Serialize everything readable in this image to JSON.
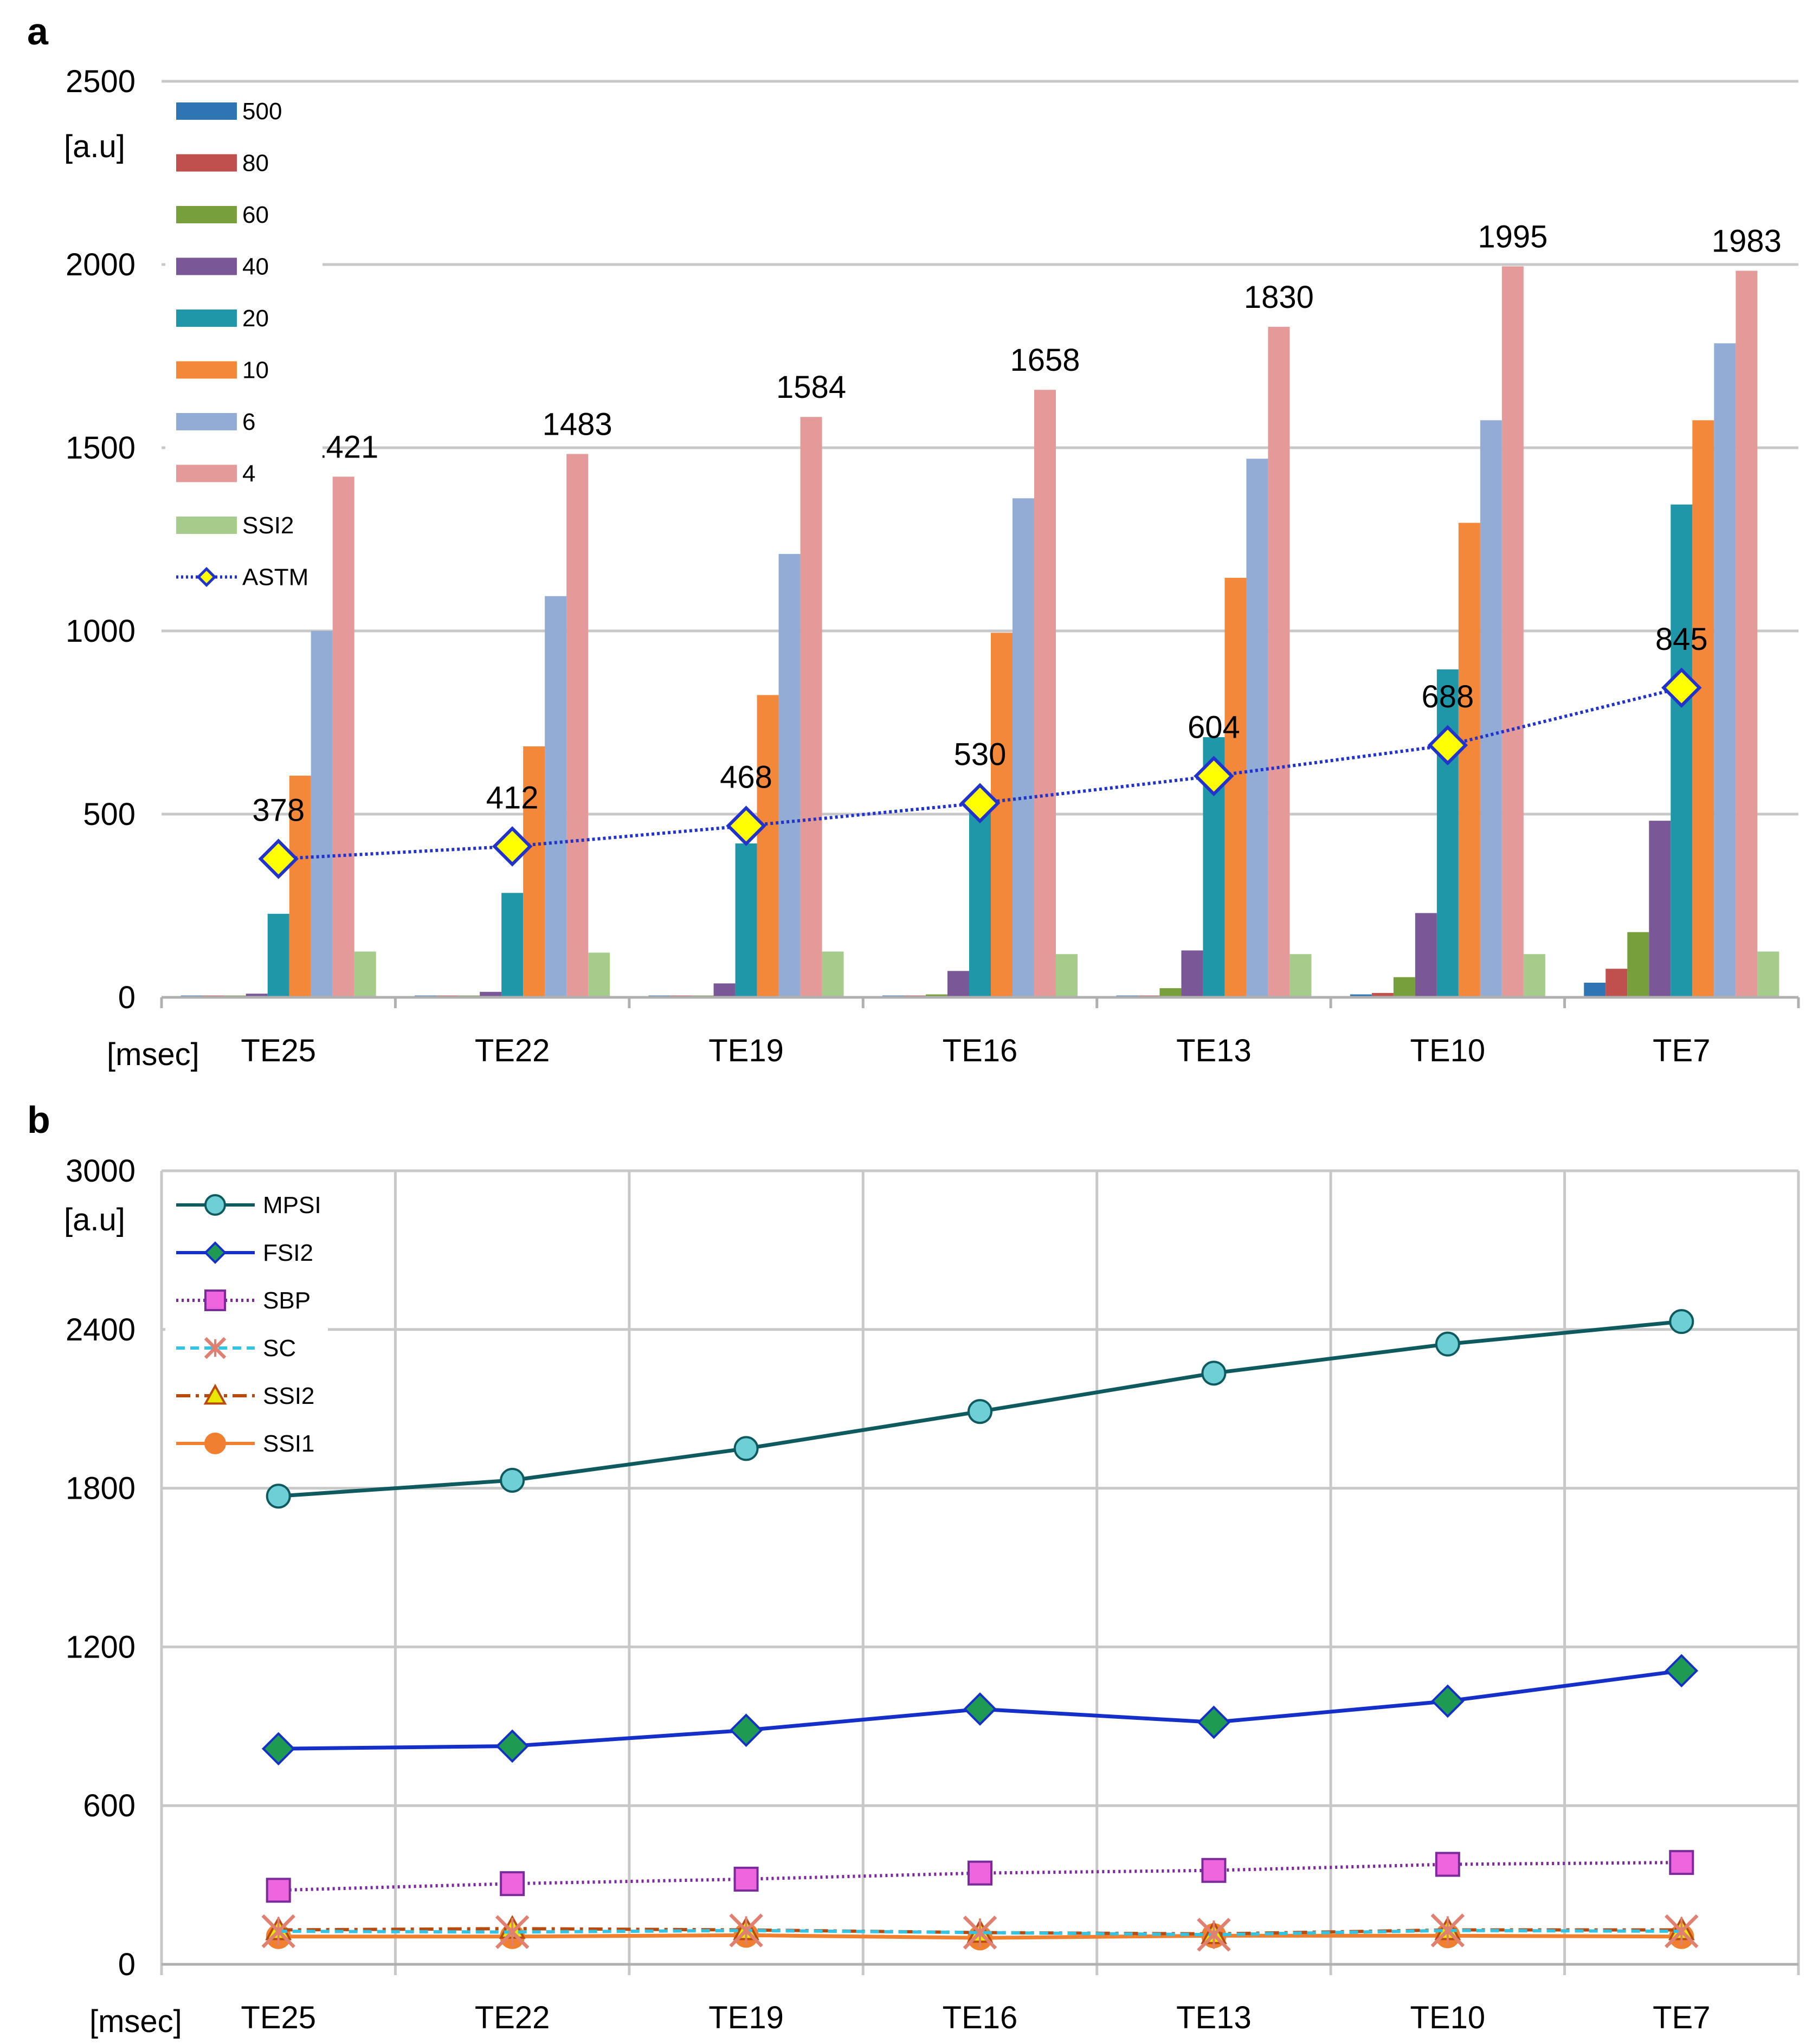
{
  "chart_data": [
    {
      "panel": "a",
      "type": "bar",
      "ylabel": "[a.u]",
      "xlabel": "[msec]",
      "ylim": [
        0,
        2500
      ],
      "yticks": [
        0,
        500,
        1000,
        1500,
        2000,
        2500
      ],
      "categories": [
        "TE25",
        "TE22",
        "TE19",
        "TE16",
        "TE13",
        "TE10",
        "TE7"
      ],
      "grid": "horizontal",
      "legend_position": "top-left",
      "series": [
        {
          "name": "500",
          "kind": "bar",
          "color": "#2e75b6",
          "values": [
            5,
            5,
            5,
            5,
            5,
            8,
            40
          ]
        },
        {
          "name": "80",
          "kind": "bar",
          "color": "#c0504d",
          "values": [
            5,
            5,
            5,
            5,
            5,
            12,
            78
          ]
        },
        {
          "name": "60",
          "kind": "bar",
          "color": "#77a03c",
          "values": [
            5,
            5,
            5,
            8,
            25,
            55,
            178
          ]
        },
        {
          "name": "40",
          "kind": "bar",
          "color": "#7a5796",
          "values": [
            10,
            15,
            38,
            72,
            128,
            230,
            482
          ]
        },
        {
          "name": "20",
          "kind": "bar",
          "color": "#1f97a8",
          "values": [
            228,
            285,
            420,
            530,
            710,
            895,
            1345
          ]
        },
        {
          "name": "10",
          "kind": "bar",
          "color": "#f4883a",
          "values": [
            605,
            685,
            825,
            995,
            1145,
            1295,
            1575
          ]
        },
        {
          "name": "6",
          "kind": "bar",
          "color": "#92acd6",
          "values": [
            1000,
            1095,
            1210,
            1362,
            1470,
            1575,
            1785
          ]
        },
        {
          "name": "4",
          "kind": "bar",
          "color": "#e49a99",
          "values": [
            1421,
            1483,
            1584,
            1658,
            1830,
            1995,
            1983
          ],
          "labels": [
            "1421",
            "1483",
            "1584",
            "1658",
            "1830",
            "1995",
            "1983"
          ]
        },
        {
          "name": "SSI2",
          "kind": "bar",
          "color": "#a6cc8c",
          "values": [
            125,
            122,
            125,
            118,
            118,
            118,
            125
          ]
        },
        {
          "name": "ASTM",
          "kind": "line",
          "color": "#2233cc",
          "marker": "diamond",
          "marker_fill": "#ffff00",
          "values": [
            378,
            412,
            468,
            530,
            604,
            688,
            845
          ],
          "labels": [
            "378",
            "412",
            "468",
            "530",
            "604",
            "688",
            "845"
          ]
        }
      ]
    },
    {
      "panel": "b",
      "type": "line",
      "ylabel": "[a.u]",
      "xlabel": "[msec]",
      "ylim": [
        0,
        3000
      ],
      "yticks": [
        0,
        600,
        1200,
        1800,
        2400,
        3000
      ],
      "categories": [
        "TE25",
        "TE22",
        "TE19",
        "TE16",
        "TE13",
        "TE10",
        "TE7"
      ],
      "grid": "both",
      "legend_position": "top-left",
      "series": [
        {
          "name": "MPSI",
          "color": "#0e5a5e",
          "marker": "circle",
          "marker_fill": "#6fcfd6",
          "dash": "solid",
          "values": [
            1770,
            1830,
            1950,
            2090,
            2235,
            2345,
            2430
          ]
        },
        {
          "name": "FSI2",
          "color": "#1430c8",
          "marker": "diamond",
          "marker_fill": "#1f9a52",
          "dash": "solid",
          "values": [
            815,
            825,
            885,
            965,
            915,
            995,
            1110
          ]
        },
        {
          "name": "SBP",
          "color": "#7a2a9a",
          "marker": "square",
          "marker_fill": "#ee66dd",
          "dash": "dotted",
          "values": [
            280,
            305,
            322,
            345,
            355,
            378,
            385
          ]
        },
        {
          "name": "SC",
          "color": "#33c4e4",
          "marker": "x-star",
          "marker_fill": "#e08070",
          "dash": "dashed",
          "values": [
            125,
            122,
            128,
            120,
            112,
            128,
            125
          ]
        },
        {
          "name": "SSI2",
          "color": "#b84a0e",
          "marker": "triangle",
          "marker_fill": "#e8e800",
          "dash": "dashdot",
          "values": [
            130,
            135,
            130,
            120,
            115,
            130,
            130
          ]
        },
        {
          "name": "SSI1",
          "color": "#f08030",
          "marker": "circle",
          "marker_fill": "#f08030",
          "dash": "solid",
          "values": [
            105,
            105,
            110,
            100,
            108,
            108,
            105
          ]
        }
      ]
    }
  ]
}
